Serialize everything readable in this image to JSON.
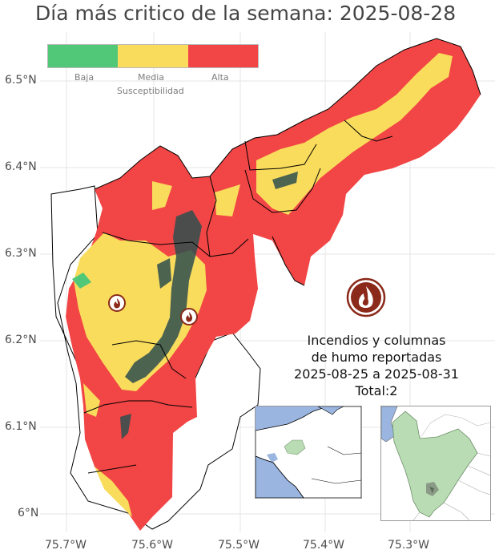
{
  "title": "Día más critico de la semana: 2025-08-28",
  "legend": {
    "title": "Susceptibilidad",
    "levels": [
      {
        "label": "Baja",
        "color": "#50c878"
      },
      {
        "label": "Media",
        "color": "#f9dc5c"
      },
      {
        "label": "Alta",
        "color": "#f24545"
      }
    ]
  },
  "axes": {
    "y_ticks": [
      "6.5°N",
      "6.4°N",
      "6.3°N",
      "6.2°N",
      "6.1°N",
      "6°N"
    ],
    "x_ticks": [
      "75.7°W",
      "75.6°W",
      "75.5°W",
      "75.4°W",
      "75.3°W"
    ]
  },
  "stats": {
    "line1": "Incendios y columnas",
    "line2": "de humo reportadas",
    "line3": "2025-08-25 a 2025-08-31",
    "line4": "Total:2"
  },
  "colors": {
    "high": "#f24545",
    "medium": "#f9dc5c",
    "low": "#50c878",
    "urban": "#2f4f4f",
    "water": "#9ab5e0",
    "region": "#b9dcb4",
    "fire_icon": "#8b2a1a"
  },
  "icons": {
    "fire_marker": "flame-icon",
    "fire_legend": "flame-circle-icon"
  },
  "fire_reports": 2
}
